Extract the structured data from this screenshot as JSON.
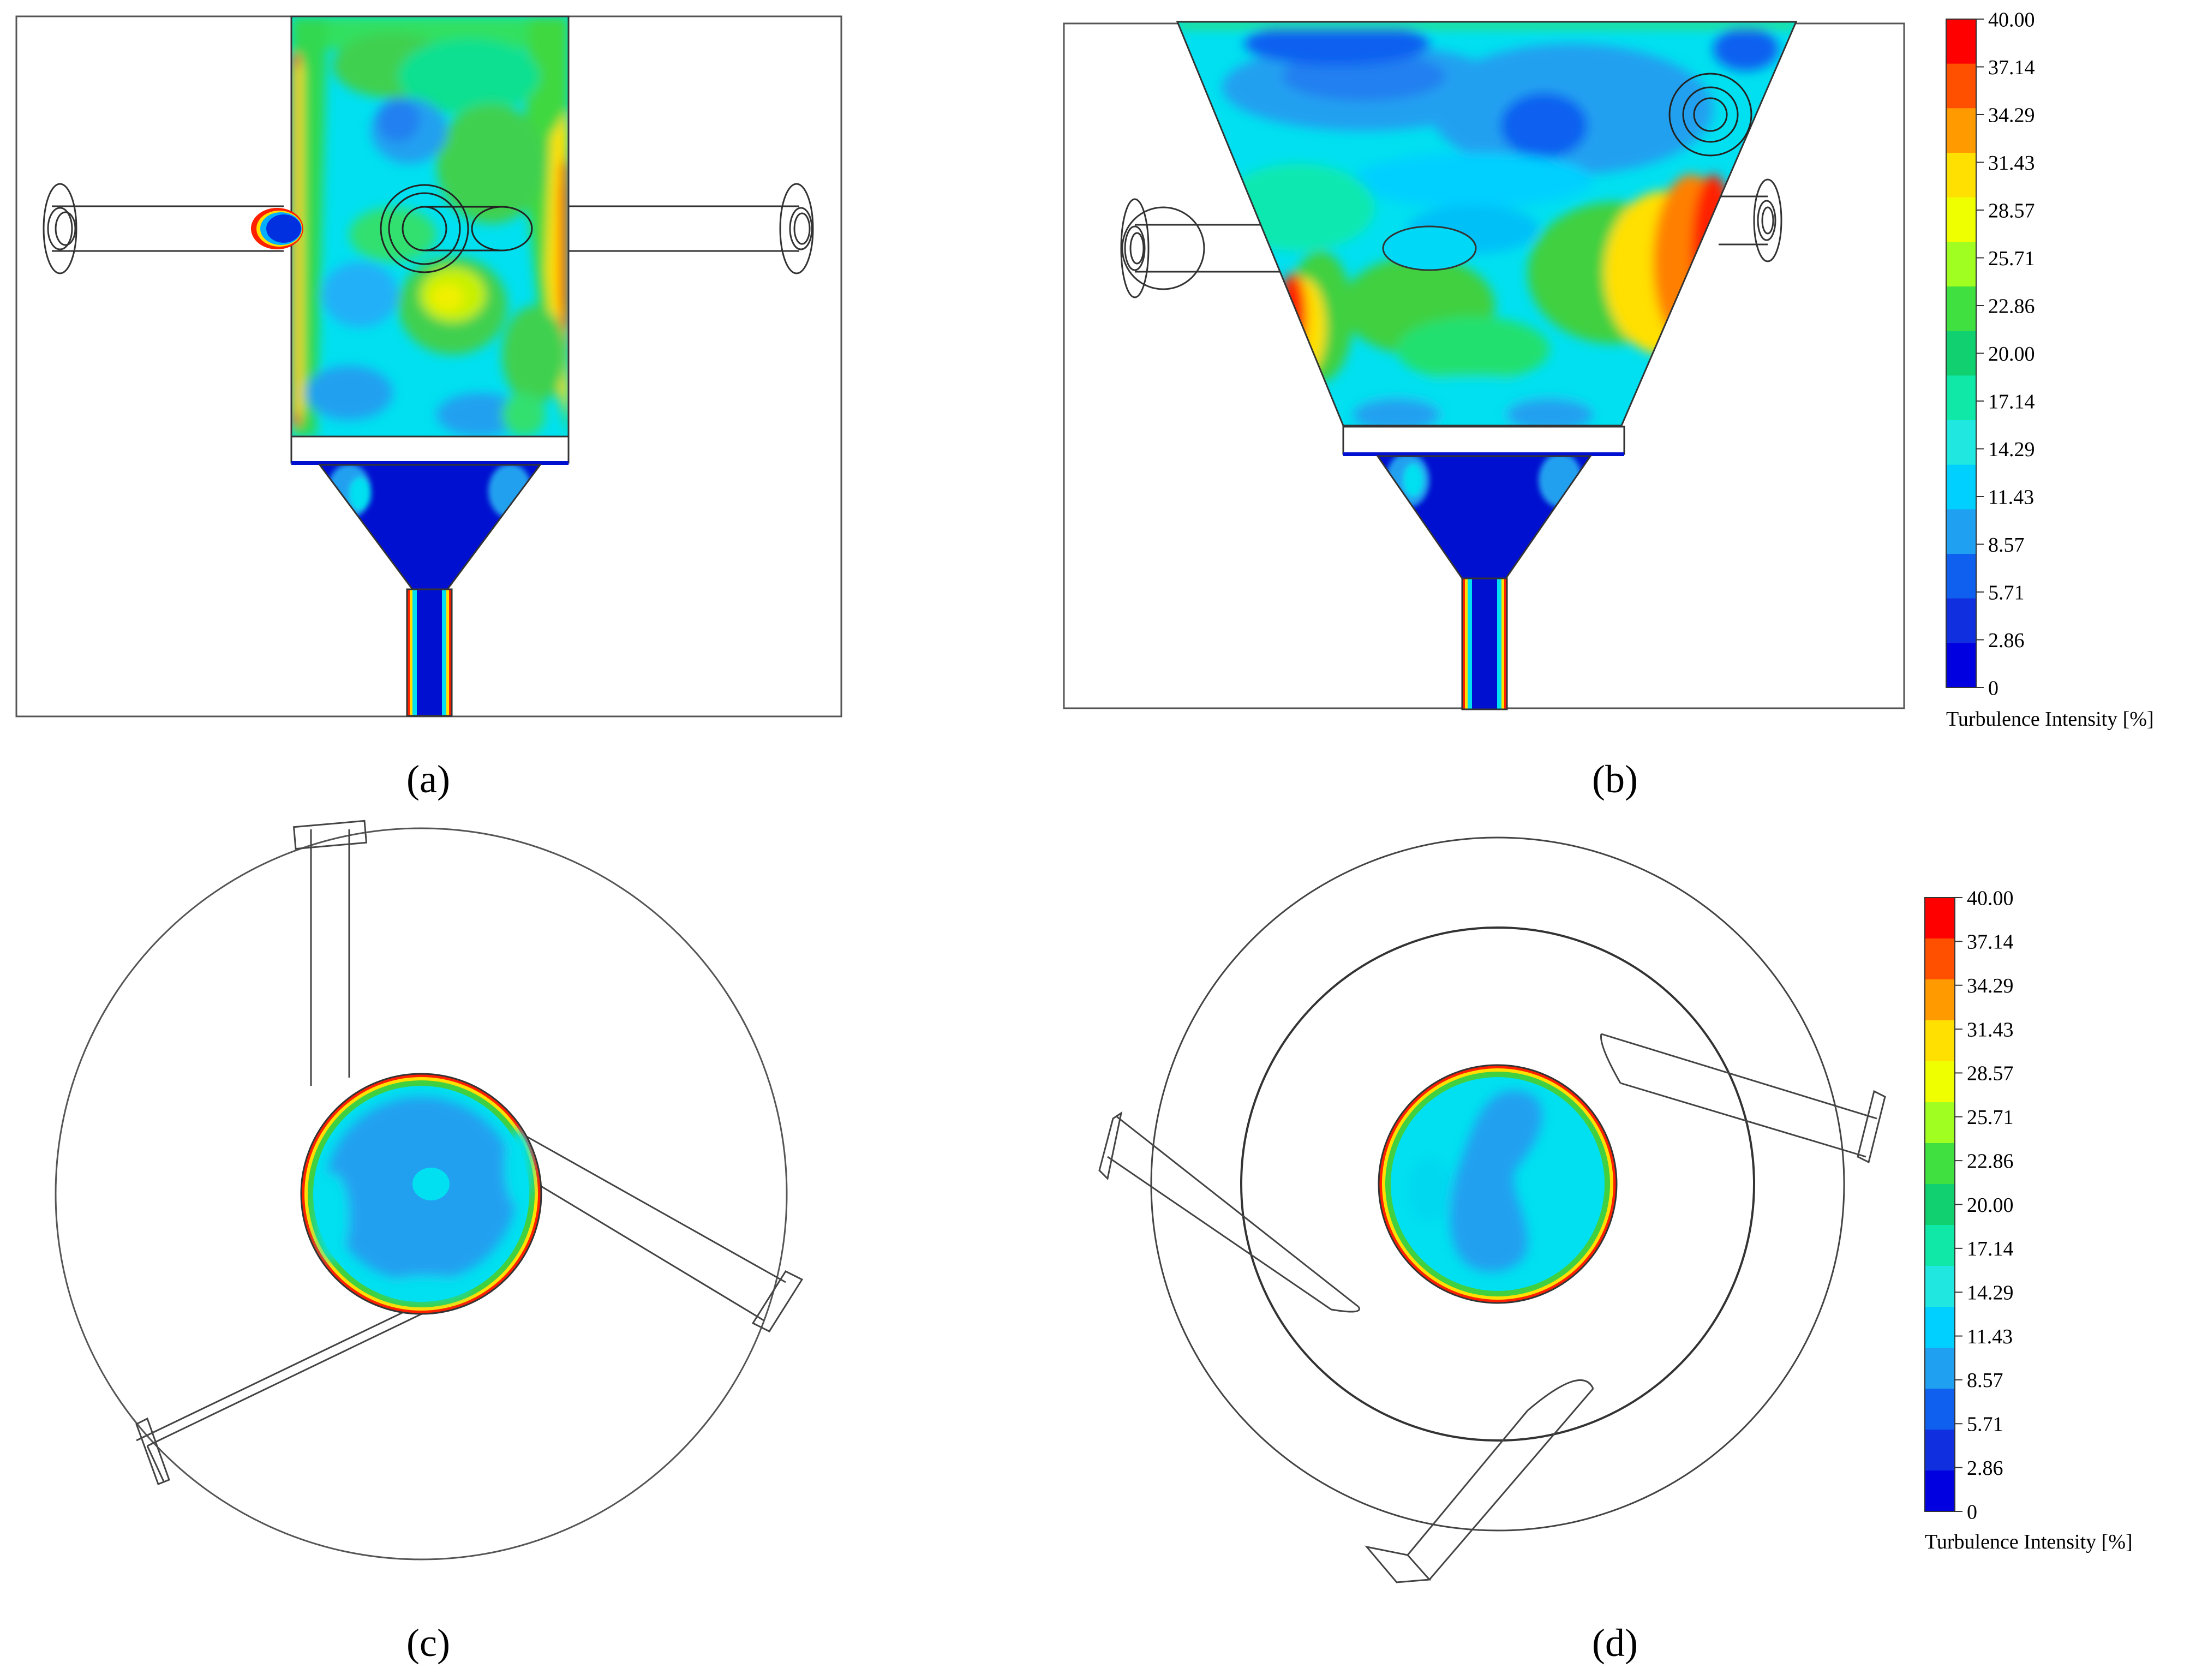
{
  "panels": [
    {
      "id": "a",
      "label": "(a)",
      "letter": "a",
      "view": "side",
      "geometry": "cylinder-cone"
    },
    {
      "id": "b",
      "label": "(b)",
      "letter": "b",
      "view": "side",
      "geometry": "inverted-cone"
    },
    {
      "id": "c",
      "label": "(c)",
      "letter": "c",
      "view": "top",
      "inlets": 3
    },
    {
      "id": "d",
      "label": "(d)",
      "letter": "d",
      "view": "top",
      "inlets": 3
    }
  ],
  "colorbar": {
    "title": "Turbulence Intensity [%]",
    "ticks": [
      "40.00",
      "37.14",
      "34.29",
      "31.43",
      "28.57",
      "25.71",
      "22.86",
      "20.00",
      "17.14",
      "14.29",
      "11.43",
      "8.57",
      "5.71",
      "2.86",
      "0"
    ],
    "colors": [
      "#ff0000",
      "#ff5000",
      "#ff9b00",
      "#ffe000",
      "#f0ff00",
      "#a0ff20",
      "#40e040",
      "#10d070",
      "#10e8a8",
      "#20e8e0",
      "#00d0ff",
      "#20a0f0",
      "#1060f0",
      "#1030e0",
      "#0000e0"
    ]
  },
  "colors": {
    "outline": "#555555",
    "red": "#ff1a00",
    "orange": "#ff8000",
    "yellow": "#ffee00",
    "green": "#40d040",
    "cyan": "#00e8f0",
    "lightblue": "#00b0ff",
    "blue": "#0040e0",
    "deepblue": "#0010d0"
  }
}
